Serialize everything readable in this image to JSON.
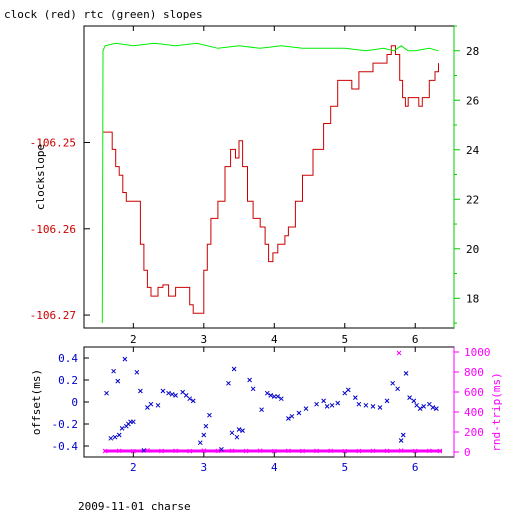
{
  "chart_data": [
    {
      "type": "line",
      "title": "clock (red) rtc (green) slopes",
      "xlabel": "",
      "ylabel": "clockslope",
      "xlim": [
        1.3,
        6.55
      ],
      "xticks": [
        2,
        3,
        4,
        5,
        6
      ],
      "ylim": [
        -106.2715,
        -106.2365
      ],
      "yticks": [
        -106.25,
        -106.26,
        -106.27
      ],
      "y2label": "",
      "y2lim": [
        16.8,
        29
      ],
      "y2ticks": [
        18,
        20,
        22,
        24,
        26,
        28
      ],
      "colors": {
        "clock": "#cc0000",
        "rtc": "#00ee00",
        "axis": "#000000",
        "y2axis": "#00cc00",
        "yticks": "#cc0000"
      },
      "series": [
        {
          "name": "clock",
          "axis": "left",
          "points": [
            [
              1.57,
              -106.2488
            ],
            [
              1.68,
              -106.2488
            ],
            [
              1.7,
              -106.2508
            ],
            [
              1.75,
              -106.2528
            ],
            [
              1.8,
              -106.2538
            ],
            [
              1.85,
              -106.2558
            ],
            [
              1.9,
              -106.2568
            ],
            [
              2.05,
              -106.2568
            ],
            [
              2.1,
              -106.2618
            ],
            [
              2.15,
              -106.2648
            ],
            [
              2.2,
              -106.2668
            ],
            [
              2.25,
              -106.2678
            ],
            [
              2.35,
              -106.2668
            ],
            [
              2.42,
              -106.2665
            ],
            [
              2.5,
              -106.2678
            ],
            [
              2.6,
              -106.2668
            ],
            [
              2.7,
              -106.2668
            ],
            [
              2.8,
              -106.2688
            ],
            [
              2.85,
              -106.2698
            ],
            [
              2.92,
              -106.2698
            ],
            [
              3.0,
              -106.2648
            ],
            [
              3.05,
              -106.2618
            ],
            [
              3.1,
              -106.2588
            ],
            [
              3.2,
              -106.2568
            ],
            [
              3.3,
              -106.2528
            ],
            [
              3.38,
              -106.2508
            ],
            [
              3.45,
              -106.2518
            ],
            [
              3.5,
              -106.2498
            ],
            [
              3.55,
              -106.2528
            ],
            [
              3.62,
              -106.2568
            ],
            [
              3.7,
              -106.2588
            ],
            [
              3.8,
              -106.2598
            ],
            [
              3.87,
              -106.2618
            ],
            [
              3.92,
              -106.2638
            ],
            [
              3.98,
              -106.2628
            ],
            [
              4.05,
              -106.2618
            ],
            [
              4.15,
              -106.2608
            ],
            [
              4.2,
              -106.2598
            ],
            [
              4.3,
              -106.2568
            ],
            [
              4.4,
              -106.2538
            ],
            [
              4.55,
              -106.2508
            ],
            [
              4.7,
              -106.2478
            ],
            [
              4.8,
              -106.2458
            ],
            [
              4.9,
              -106.2428
            ],
            [
              5.0,
              -106.2428
            ],
            [
              5.1,
              -106.2438
            ],
            [
              5.2,
              -106.2418
            ],
            [
              5.3,
              -106.2418
            ],
            [
              5.4,
              -106.2408
            ],
            [
              5.5,
              -106.2408
            ],
            [
              5.6,
              -106.2398
            ],
            [
              5.66,
              -106.2388
            ],
            [
              5.72,
              -106.2398
            ],
            [
              5.78,
              -106.2428
            ],
            [
              5.82,
              -106.2448
            ],
            [
              5.86,
              -106.2458
            ],
            [
              5.9,
              -106.2448
            ],
            [
              5.95,
              -106.2448
            ],
            [
              6.05,
              -106.2458
            ],
            [
              6.1,
              -106.2448
            ],
            [
              6.2,
              -106.2428
            ],
            [
              6.28,
              -106.2418
            ],
            [
              6.33,
              -106.2408
            ]
          ]
        },
        {
          "name": "rtc",
          "axis": "right",
          "points": [
            [
              1.56,
              17.0
            ],
            [
              1.57,
              28.0
            ],
            [
              1.6,
              28.2
            ],
            [
              1.75,
              28.3
            ],
            [
              2.0,
              28.2
            ],
            [
              2.3,
              28.3
            ],
            [
              2.6,
              28.2
            ],
            [
              2.9,
              28.3
            ],
            [
              3.2,
              28.1
            ],
            [
              3.5,
              28.2
            ],
            [
              3.8,
              28.1
            ],
            [
              4.1,
              28.2
            ],
            [
              4.4,
              28.1
            ],
            [
              4.7,
              28.1
            ],
            [
              5.0,
              28.1
            ],
            [
              5.3,
              28.0
            ],
            [
              5.55,
              28.1
            ],
            [
              5.7,
              28.0
            ],
            [
              5.8,
              28.2
            ],
            [
              5.9,
              28.0
            ],
            [
              6.0,
              28.0
            ],
            [
              6.2,
              28.1
            ],
            [
              6.33,
              28.0
            ]
          ]
        }
      ]
    },
    {
      "type": "scatter",
      "title": "",
      "xlabel": "2009-11-01 charse",
      "ylabel": "offset(ms)",
      "xlim": [
        1.3,
        6.55
      ],
      "xticks": [
        2,
        3,
        4,
        5,
        6
      ],
      "ylim": [
        -0.5,
        0.5
      ],
      "yticks": [
        0.4,
        0.2,
        0,
        -0.2,
        -0.4
      ],
      "y2label": "rnd-trip(ms)",
      "y2lim": [
        -50,
        1050
      ],
      "y2ticks": [
        1000,
        800,
        600,
        400,
        200,
        0
      ],
      "colors": {
        "offset": "#0000cc",
        "rndtrip": "#ff00ff",
        "axis": "#000000"
      },
      "series": [
        {
          "name": "offset",
          "axis": "left",
          "marker": "x",
          "points": [
            [
              1.62,
              0.08
            ],
            [
              1.68,
              -0.33
            ],
            [
              1.72,
              0.28
            ],
            [
              1.74,
              -0.32
            ],
            [
              1.78,
              0.19
            ],
            [
              1.8,
              -0.3
            ],
            [
              1.84,
              -0.24
            ],
            [
              1.88,
              0.39
            ],
            [
              1.9,
              -0.22
            ],
            [
              1.93,
              -0.2
            ],
            [
              1.96,
              -0.18
            ],
            [
              2.0,
              -0.18
            ],
            [
              2.05,
              0.27
            ],
            [
              2.1,
              0.1
            ],
            [
              2.15,
              -0.44
            ],
            [
              2.2,
              -0.05
            ],
            [
              2.25,
              -0.02
            ],
            [
              2.35,
              -0.03
            ],
            [
              2.42,
              0.1
            ],
            [
              2.5,
              0.08
            ],
            [
              2.55,
              0.07
            ],
            [
              2.6,
              0.06
            ],
            [
              2.7,
              0.09
            ],
            [
              2.75,
              0.06
            ],
            [
              2.8,
              0.03
            ],
            [
              2.85,
              0.01
            ],
            [
              2.95,
              -0.37
            ],
            [
              3.0,
              -0.3
            ],
            [
              3.03,
              -0.22
            ],
            [
              3.08,
              -0.12
            ],
            [
              3.25,
              -0.43
            ],
            [
              3.35,
              0.17
            ],
            [
              3.4,
              -0.28
            ],
            [
              3.43,
              0.3
            ],
            [
              3.47,
              -0.32
            ],
            [
              3.5,
              -0.25
            ],
            [
              3.55,
              -0.26
            ],
            [
              3.65,
              0.2
            ],
            [
              3.7,
              0.12
            ],
            [
              3.82,
              -0.07
            ],
            [
              3.9,
              0.08
            ],
            [
              3.95,
              0.06
            ],
            [
              4.0,
              0.05
            ],
            [
              4.05,
              0.05
            ],
            [
              4.1,
              0.03
            ],
            [
              4.2,
              -0.15
            ],
            [
              4.25,
              -0.13
            ],
            [
              4.35,
              -0.1
            ],
            [
              4.45,
              -0.06
            ],
            [
              4.6,
              -0.02
            ],
            [
              4.7,
              0.01
            ],
            [
              4.75,
              -0.04
            ],
            [
              4.82,
              -0.03
            ],
            [
              4.9,
              -0.01
            ],
            [
              5.0,
              0.08
            ],
            [
              5.05,
              0.11
            ],
            [
              5.15,
              0.04
            ],
            [
              5.2,
              -0.02
            ],
            [
              5.3,
              -0.03
            ],
            [
              5.4,
              -0.04
            ],
            [
              5.5,
              -0.05
            ],
            [
              5.6,
              0.01
            ],
            [
              5.68,
              0.17
            ],
            [
              5.75,
              0.12
            ],
            [
              5.8,
              -0.35
            ],
            [
              5.83,
              -0.3
            ],
            [
              5.87,
              0.26
            ],
            [
              5.92,
              0.04
            ],
            [
              5.98,
              0.01
            ],
            [
              6.02,
              -0.03
            ],
            [
              6.07,
              -0.06
            ],
            [
              6.12,
              -0.04
            ],
            [
              6.2,
              -0.02
            ],
            [
              6.25,
              -0.05
            ],
            [
              6.3,
              -0.06
            ]
          ]
        },
        {
          "name": "rnd-trip",
          "axis": "right",
          "marker": "x",
          "points": [
            [
              1.6,
              10
            ],
            [
              1.8,
              12
            ],
            [
              2.0,
              8
            ],
            [
              2.2,
              15
            ],
            [
              2.4,
              10
            ],
            [
              2.6,
              12
            ],
            [
              2.8,
              9
            ],
            [
              3.0,
              14
            ],
            [
              3.2,
              11
            ],
            [
              3.4,
              12
            ],
            [
              3.6,
              10
            ],
            [
              3.8,
              13
            ],
            [
              4.0,
              9
            ],
            [
              4.2,
              12
            ],
            [
              4.4,
              10
            ],
            [
              4.6,
              11
            ],
            [
              4.8,
              12
            ],
            [
              5.0,
              9
            ],
            [
              5.2,
              10
            ],
            [
              5.4,
              12
            ],
            [
              5.6,
              11
            ],
            [
              5.77,
              990
            ],
            [
              5.8,
              14
            ],
            [
              6.0,
              10
            ],
            [
              6.2,
              12
            ],
            [
              6.35,
              10
            ]
          ]
        }
      ]
    }
  ]
}
